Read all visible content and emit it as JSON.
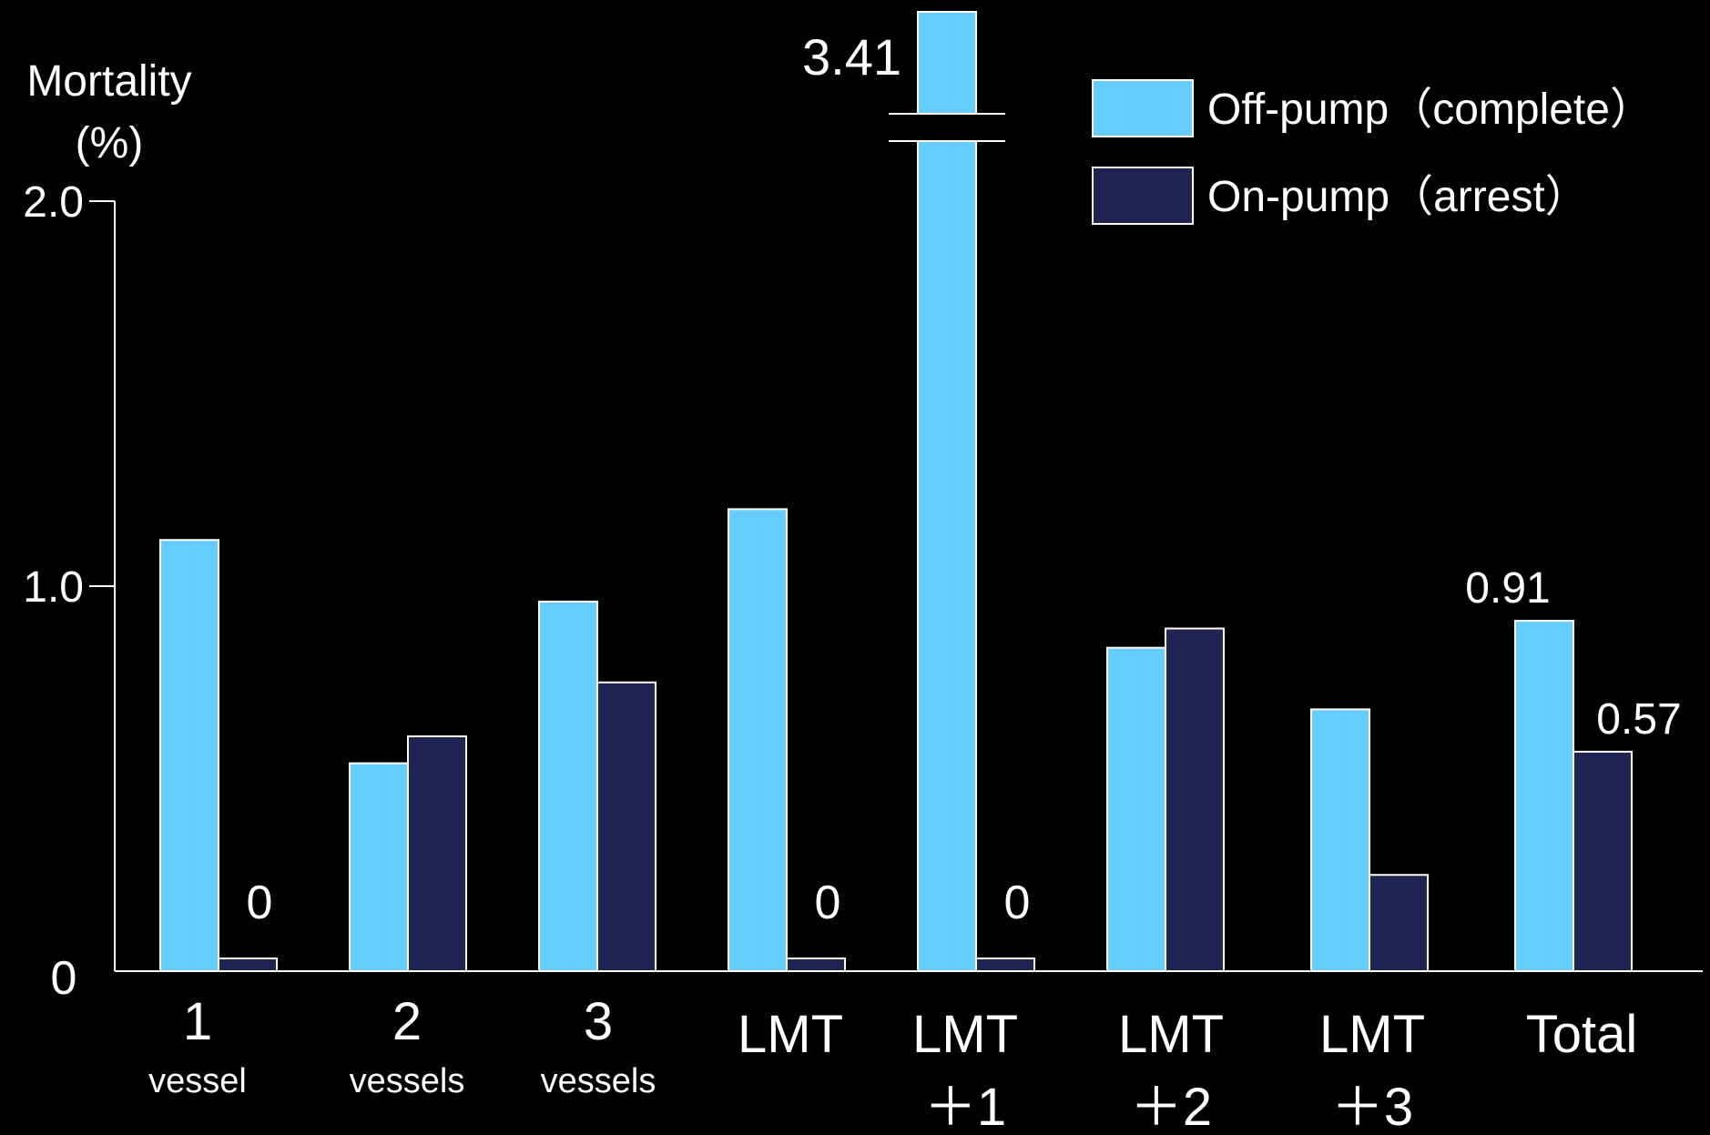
{
  "chart_data": {
    "type": "bar",
    "ylabel_line1": "Mortality",
    "ylabel_line2": "(%)",
    "yticks": [
      {
        "value": 0,
        "label": "0"
      },
      {
        "value": 1.0,
        "label": "1.0"
      },
      {
        "value": 2.0,
        "label": "2.0"
      }
    ],
    "ylim": [
      0,
      2.0
    ],
    "axis_break": {
      "category": "LMT +1",
      "series": "Off-pump（complete）"
    },
    "categories": [
      {
        "main": "1",
        "sub": "vessel"
      },
      {
        "main": "2",
        "sub": "vessels"
      },
      {
        "main": "3",
        "sub": "vessels"
      },
      {
        "main": "LMT",
        "sub": ""
      },
      {
        "main": "LMT",
        "sub": "＋1"
      },
      {
        "main": "LMT",
        "sub": "＋2"
      },
      {
        "main": "LMT",
        "sub": "＋3"
      },
      {
        "main": "Total",
        "sub": ""
      }
    ],
    "series": [
      {
        "name": "Off-pump（complete）",
        "color": "#66ccff",
        "values": [
          1.12,
          0.54,
          0.96,
          1.2,
          3.41,
          0.84,
          0.68,
          0.91
        ],
        "labels": [
          "",
          "",
          "",
          "",
          "3.41",
          "",
          "",
          "0.91"
        ]
      },
      {
        "name": "On-pump（arrest）",
        "color": "#202451",
        "values": [
          0,
          0.61,
          0.75,
          0,
          0,
          0.89,
          0.25,
          0.57
        ],
        "labels": [
          "0",
          "",
          "",
          "0",
          "0",
          "",
          "",
          "0.57"
        ]
      }
    ],
    "grid": false,
    "legend_position": "top-right"
  }
}
